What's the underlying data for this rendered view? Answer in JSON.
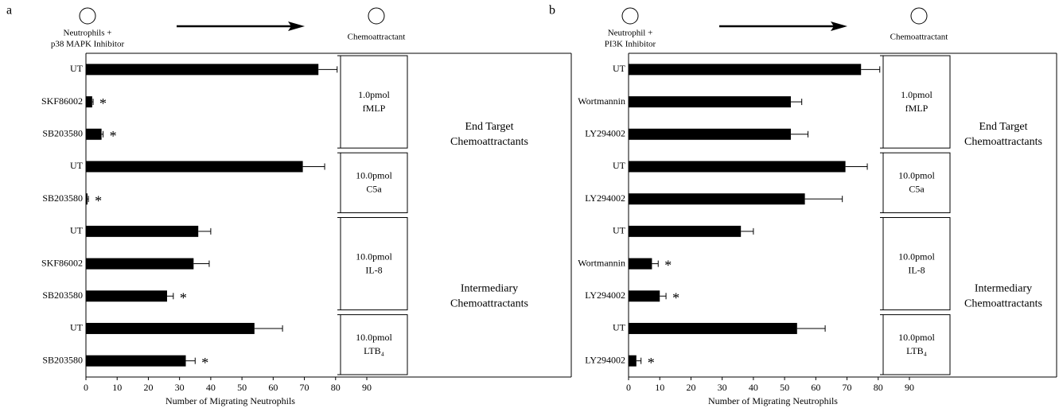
{
  "chart_data": [
    {
      "type": "bar",
      "panel_label": "a",
      "header": {
        "source_lines": [
          "Neutrophils +",
          "p38 MAPK Inhibitor"
        ],
        "target": "Chemoattractant"
      },
      "x_label": "Number of Migrating Neutrophils",
      "xlim": [
        0,
        90
      ],
      "xticks": [
        0,
        10,
        20,
        30,
        40,
        50,
        60,
        70,
        80,
        90
      ],
      "color": "#000000",
      "classes": [
        {
          "label_lines": [
            "End Target",
            "Chemoattractants"
          ],
          "groups": [
            {
              "label_lines": [
                "1.0pmol",
                "fMLP"
              ],
              "categories": [
                "UT",
                "SKF86002",
                "SB203580"
              ],
              "values": [
                74.5,
                2,
                5
              ],
              "errors": [
                6,
                0.3,
                0.5
              ],
              "marks": [
                null,
                "*",
                "*"
              ]
            },
            {
              "label_lines": [
                "10.0pmol",
                "C5a"
              ],
              "categories": [
                "UT",
                "SB203580"
              ],
              "values": [
                69.5,
                0.5
              ],
              "errors": [
                7,
                0.3
              ],
              "marks": [
                null,
                "*"
              ]
            }
          ]
        },
        {
          "label_lines": [
            "Intermediary",
            "Chemoattractants"
          ],
          "groups": [
            {
              "label_lines": [
                "10.0pmol",
                "IL-8"
              ],
              "categories": [
                "UT",
                "SKF86002",
                "SB203580"
              ],
              "values": [
                36,
                34.5,
                26
              ],
              "errors": [
                4,
                5,
                2
              ],
              "marks": [
                null,
                null,
                "*"
              ]
            },
            {
              "label_lines": [
                "10.0pmol",
                "LTB₄"
              ],
              "categories": [
                "UT",
                "SB203580"
              ],
              "values": [
                54,
                32
              ],
              "errors": [
                9,
                3
              ],
              "marks": [
                null,
                "*"
              ]
            }
          ]
        }
      ]
    },
    {
      "type": "bar",
      "panel_label": "b",
      "header": {
        "source_lines": [
          "Neutrophil +",
          "PI3K Inhibitor"
        ],
        "target": "Chemoattractant"
      },
      "x_label": "Number of Migrating Neutrophils",
      "xlim": [
        0,
        90
      ],
      "xticks": [
        0,
        10,
        20,
        30,
        40,
        50,
        60,
        70,
        80,
        90
      ],
      "color": "#000000",
      "classes": [
        {
          "label_lines": [
            "End Target",
            "Chemoattractants"
          ],
          "groups": [
            {
              "label_lines": [
                "1.0pmol",
                "fMLP"
              ],
              "categories": [
                "UT",
                "Wortmannin",
                "LY294002"
              ],
              "values": [
                74.5,
                52,
                52
              ],
              "errors": [
                6,
                3.5,
                5.5
              ],
              "marks": [
                null,
                null,
                null
              ]
            },
            {
              "label_lines": [
                "10.0pmol",
                "C5a"
              ],
              "categories": [
                "UT",
                "LY294002"
              ],
              "values": [
                69.5,
                56.5
              ],
              "errors": [
                7,
                12
              ],
              "marks": [
                null,
                null
              ]
            }
          ]
        },
        {
          "label_lines": [
            "Intermediary",
            "Chemoattractants"
          ],
          "groups": [
            {
              "label_lines": [
                "10.0pmol",
                "IL-8"
              ],
              "categories": [
                "UT",
                "Wortmannin",
                "LY294002"
              ],
              "values": [
                36,
                7.5,
                10
              ],
              "errors": [
                4,
                2,
                2
              ],
              "marks": [
                null,
                "*",
                "*"
              ]
            },
            {
              "label_lines": [
                "10.0pmol",
                "LTB₄"
              ],
              "categories": [
                "UT",
                "LY294002"
              ],
              "values": [
                54,
                2.5
              ],
              "errors": [
                9,
                1.5
              ],
              "marks": [
                null,
                "*"
              ]
            }
          ]
        }
      ]
    }
  ]
}
